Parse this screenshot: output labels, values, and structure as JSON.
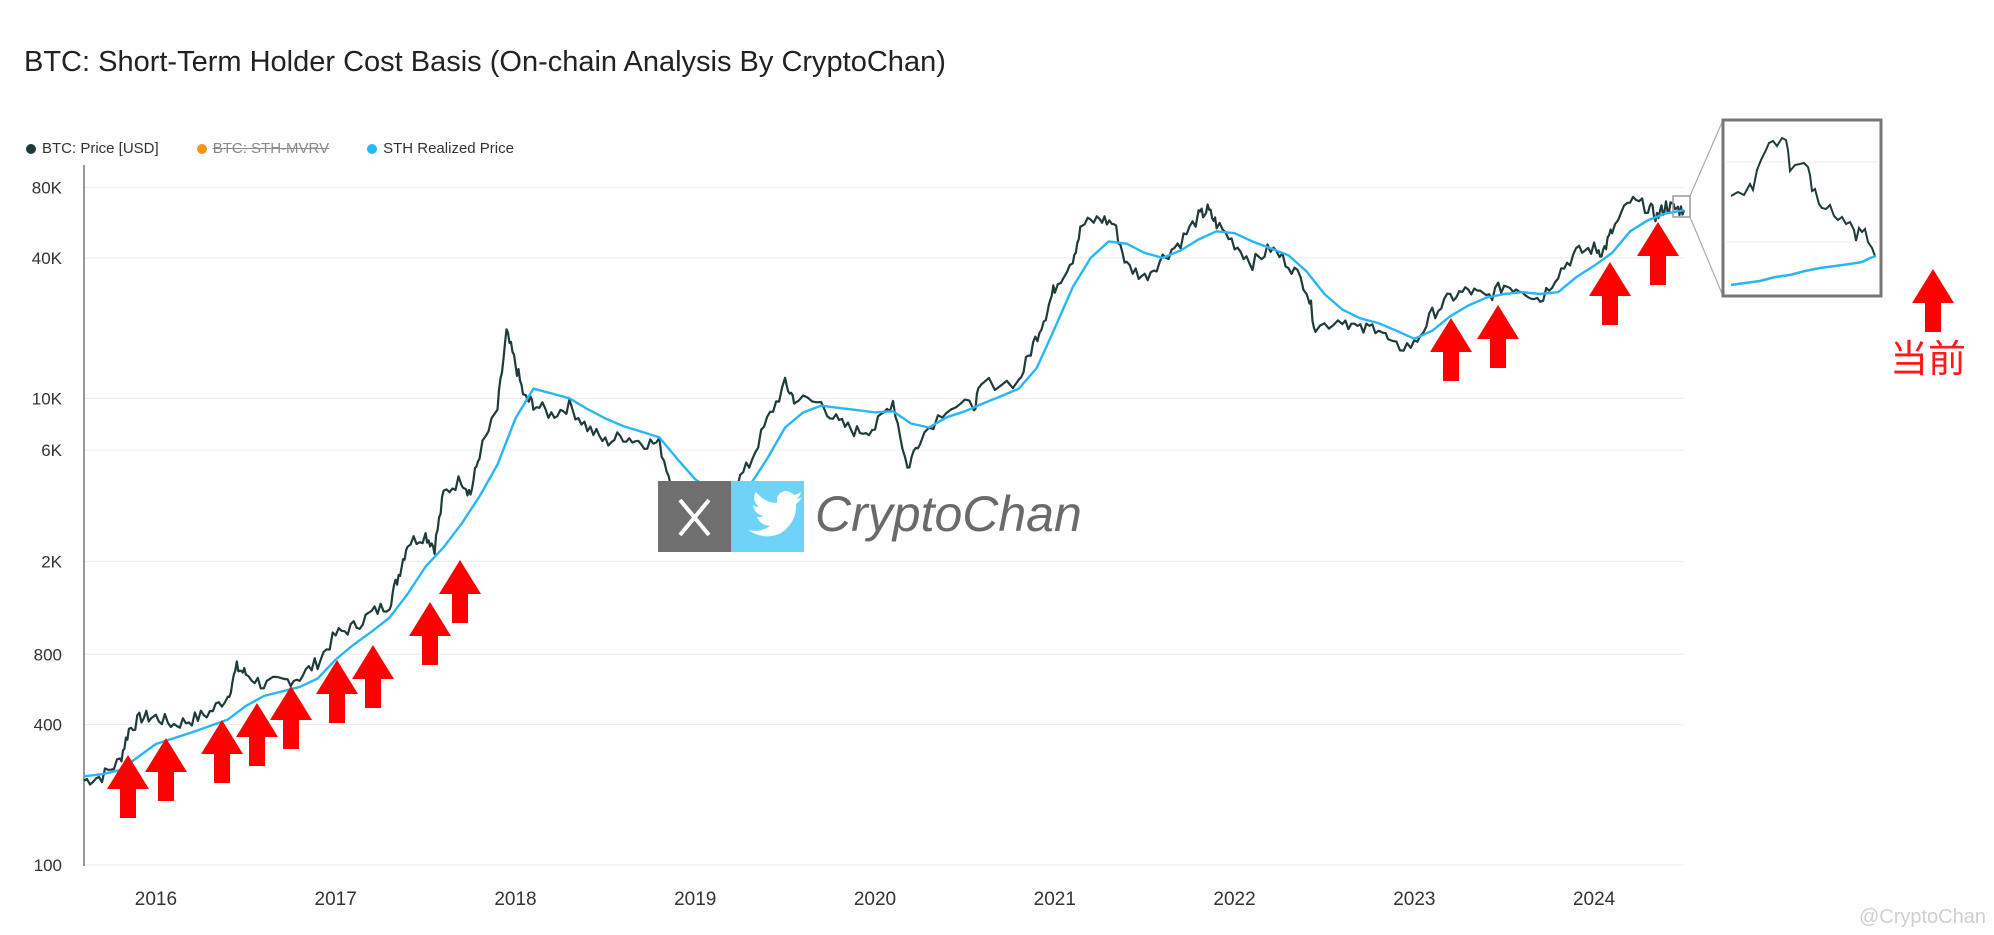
{
  "title": "BTC: Short-Term Holder Cost Basis (On-chain Analysis By CryptoChan)",
  "legend": [
    {
      "label": "BTC: Price [USD]",
      "color": "#1f3b3b",
      "enabled": true
    },
    {
      "label": "BTC: STH-MVRV",
      "color": "#f7931a",
      "enabled": false
    },
    {
      "label": "STH Realized Price",
      "color": "#29b6f6",
      "enabled": true
    }
  ],
  "watermark": {
    "brand": "CryptoChan",
    "x_icon": "x-logo-icon",
    "twitter_icon": "twitter-bird-icon"
  },
  "inset_label": "当前",
  "footer": "@CryptoChan",
  "chart_data": {
    "type": "line",
    "title": "BTC: Short-Term Holder Cost Basis (On-chain Analysis By CryptoChan)",
    "y_scale": "log",
    "ylim": [
      100,
      100000
    ],
    "y_ticks": [
      {
        "label": "100",
        "value": 100
      },
      {
        "label": "400",
        "value": 400
      },
      {
        "label": "800",
        "value": 800
      },
      {
        "label": "2K",
        "value": 2000
      },
      {
        "label": "6K",
        "value": 6000
      },
      {
        "label": "10K",
        "value": 10000
      },
      {
        "label": "40K",
        "value": 40000
      },
      {
        "label": "80K",
        "value": 80000
      }
    ],
    "xlim": [
      2015.6,
      2024.5
    ],
    "x_ticks": [
      {
        "label": "2016",
        "value": 2016
      },
      {
        "label": "2017",
        "value": 2017
      },
      {
        "label": "2018",
        "value": 2018
      },
      {
        "label": "2019",
        "value": 2019
      },
      {
        "label": "2020",
        "value": 2020
      },
      {
        "label": "2021",
        "value": 2021
      },
      {
        "label": "2022",
        "value": 2022
      },
      {
        "label": "2023",
        "value": 2023
      },
      {
        "label": "2024",
        "value": 2024
      }
    ],
    "grid": true,
    "legend_position": "top-left",
    "series": [
      {
        "name": "BTC: Price [USD]",
        "color": "#1f3b3b",
        "points": [
          [
            2015.6,
            230
          ],
          [
            2015.7,
            240
          ],
          [
            2015.8,
            280
          ],
          [
            2015.85,
            380
          ],
          [
            2015.92,
            430
          ],
          [
            2016.0,
            430
          ],
          [
            2016.1,
            400
          ],
          [
            2016.2,
            420
          ],
          [
            2016.3,
            450
          ],
          [
            2016.4,
            530
          ],
          [
            2016.45,
            700
          ],
          [
            2016.5,
            660
          ],
          [
            2016.6,
            590
          ],
          [
            2016.7,
            610
          ],
          [
            2016.8,
            640
          ],
          [
            2016.9,
            740
          ],
          [
            2017.0,
            970
          ],
          [
            2017.1,
            1050
          ],
          [
            2017.2,
            1200
          ],
          [
            2017.3,
            1320
          ],
          [
            2017.35,
            1750
          ],
          [
            2017.4,
            2400
          ],
          [
            2017.5,
            2600
          ],
          [
            2017.55,
            2300
          ],
          [
            2017.6,
            3900
          ],
          [
            2017.7,
            4500
          ],
          [
            2017.75,
            3900
          ],
          [
            2017.8,
            5800
          ],
          [
            2017.9,
            9000
          ],
          [
            2017.95,
            19000
          ],
          [
            2018.0,
            14000
          ],
          [
            2018.05,
            10000
          ],
          [
            2018.1,
            9500
          ],
          [
            2018.2,
            8500
          ],
          [
            2018.3,
            9300
          ],
          [
            2018.4,
            7500
          ],
          [
            2018.5,
            6500
          ],
          [
            2018.6,
            6900
          ],
          [
            2018.7,
            6500
          ],
          [
            2018.8,
            6400
          ],
          [
            2018.88,
            4000
          ],
          [
            2018.95,
            3500
          ],
          [
            2019.0,
            3700
          ],
          [
            2019.2,
            4000
          ],
          [
            2019.3,
            5200
          ],
          [
            2019.4,
            8000
          ],
          [
            2019.5,
            11500
          ],
          [
            2019.55,
            10000
          ],
          [
            2019.7,
            9500
          ],
          [
            2019.8,
            7800
          ],
          [
            2019.9,
            7200
          ],
          [
            2020.0,
            7500
          ],
          [
            2020.1,
            9800
          ],
          [
            2020.18,
            5000
          ],
          [
            2020.25,
            6800
          ],
          [
            2020.4,
            9200
          ],
          [
            2020.55,
            9300
          ],
          [
            2020.6,
            11500
          ],
          [
            2020.8,
            11800
          ],
          [
            2020.88,
            17000
          ],
          [
            2020.95,
            23000
          ],
          [
            2021.0,
            30000
          ],
          [
            2021.1,
            40000
          ],
          [
            2021.15,
            55000
          ],
          [
            2021.25,
            59000
          ],
          [
            2021.33,
            56000
          ],
          [
            2021.4,
            37000
          ],
          [
            2021.5,
            33000
          ],
          [
            2021.6,
            40000
          ],
          [
            2021.7,
            47000
          ],
          [
            2021.8,
            60000
          ],
          [
            2021.85,
            64000
          ],
          [
            2021.9,
            56000
          ],
          [
            2022.0,
            46000
          ],
          [
            2022.1,
            38000
          ],
          [
            2022.2,
            44000
          ],
          [
            2022.3,
            38000
          ],
          [
            2022.4,
            30000
          ],
          [
            2022.45,
            20000
          ],
          [
            2022.6,
            22000
          ],
          [
            2022.7,
            19500
          ],
          [
            2022.8,
            20500
          ],
          [
            2022.88,
            16500
          ],
          [
            2023.0,
            17000
          ],
          [
            2023.1,
            23000
          ],
          [
            2023.2,
            27000
          ],
          [
            2023.3,
            29000
          ],
          [
            2023.4,
            27000
          ],
          [
            2023.5,
            30500
          ],
          [
            2023.6,
            29500
          ],
          [
            2023.7,
            26500
          ],
          [
            2023.8,
            34500
          ],
          [
            2023.9,
            42000
          ],
          [
            2024.0,
            44000
          ],
          [
            2024.05,
            42500
          ],
          [
            2024.1,
            52000
          ],
          [
            2024.2,
            70000
          ],
          [
            2024.3,
            66000
          ],
          [
            2024.35,
            60000
          ],
          [
            2024.4,
            67000
          ],
          [
            2024.45,
            65000
          ],
          [
            2024.5,
            64000
          ]
        ]
      },
      {
        "name": "STH Realized Price",
        "color": "#29b6f6",
        "points": [
          [
            2015.6,
            240
          ],
          [
            2015.7,
            245
          ],
          [
            2015.8,
            255
          ],
          [
            2015.9,
            290
          ],
          [
            2016.0,
            330
          ],
          [
            2016.2,
            370
          ],
          [
            2016.4,
            420
          ],
          [
            2016.5,
            480
          ],
          [
            2016.6,
            530
          ],
          [
            2016.8,
            580
          ],
          [
            2016.9,
            630
          ],
          [
            2017.0,
            760
          ],
          [
            2017.1,
            880
          ],
          [
            2017.2,
            1000
          ],
          [
            2017.3,
            1150
          ],
          [
            2017.4,
            1450
          ],
          [
            2017.5,
            1900
          ],
          [
            2017.6,
            2300
          ],
          [
            2017.7,
            2900
          ],
          [
            2017.8,
            3800
          ],
          [
            2017.9,
            5200
          ],
          [
            2018.0,
            8200
          ],
          [
            2018.1,
            11000
          ],
          [
            2018.2,
            10500
          ],
          [
            2018.3,
            10000
          ],
          [
            2018.4,
            9000
          ],
          [
            2018.5,
            8200
          ],
          [
            2018.6,
            7600
          ],
          [
            2018.7,
            7200
          ],
          [
            2018.8,
            6800
          ],
          [
            2018.9,
            5500
          ],
          [
            2019.0,
            4500
          ],
          [
            2019.1,
            4000
          ],
          [
            2019.2,
            3900
          ],
          [
            2019.3,
            4200
          ],
          [
            2019.4,
            5500
          ],
          [
            2019.5,
            7500
          ],
          [
            2019.6,
            8700
          ],
          [
            2019.7,
            9300
          ],
          [
            2019.8,
            9100
          ],
          [
            2019.9,
            8900
          ],
          [
            2020.0,
            8700
          ],
          [
            2020.1,
            8800
          ],
          [
            2020.2,
            7800
          ],
          [
            2020.3,
            7500
          ],
          [
            2020.4,
            8300
          ],
          [
            2020.5,
            8800
          ],
          [
            2020.6,
            9500
          ],
          [
            2020.7,
            10200
          ],
          [
            2020.8,
            11000
          ],
          [
            2020.9,
            13500
          ],
          [
            2021.0,
            20000
          ],
          [
            2021.1,
            30000
          ],
          [
            2021.2,
            40000
          ],
          [
            2021.3,
            47000
          ],
          [
            2021.4,
            46000
          ],
          [
            2021.5,
            42000
          ],
          [
            2021.6,
            40000
          ],
          [
            2021.7,
            43000
          ],
          [
            2021.8,
            48000
          ],
          [
            2021.9,
            52000
          ],
          [
            2022.0,
            51000
          ],
          [
            2022.1,
            47000
          ],
          [
            2022.2,
            44000
          ],
          [
            2022.3,
            41000
          ],
          [
            2022.4,
            35000
          ],
          [
            2022.5,
            28000
          ],
          [
            2022.6,
            24000
          ],
          [
            2022.7,
            22000
          ],
          [
            2022.8,
            21000
          ],
          [
            2022.9,
            19500
          ],
          [
            2023.0,
            18000
          ],
          [
            2023.1,
            19500
          ],
          [
            2023.2,
            22500
          ],
          [
            2023.3,
            25000
          ],
          [
            2023.4,
            27000
          ],
          [
            2023.5,
            28000
          ],
          [
            2023.6,
            28500
          ],
          [
            2023.7,
            28000
          ],
          [
            2023.8,
            28500
          ],
          [
            2023.9,
            33000
          ],
          [
            2024.0,
            37000
          ],
          [
            2024.1,
            42000
          ],
          [
            2024.2,
            52000
          ],
          [
            2024.3,
            58000
          ],
          [
            2024.4,
            62000
          ],
          [
            2024.5,
            64000
          ]
        ]
      }
    ]
  }
}
